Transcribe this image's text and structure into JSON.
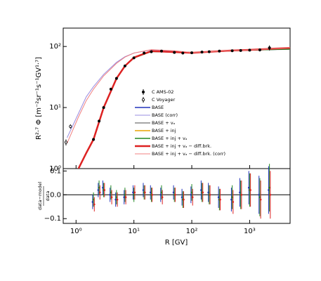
{
  "chart_data": {
    "type": "line",
    "ylabel": "R²·⁷ Φ [m⁻²sr⁻¹s⁻¹GV¹·⁷]",
    "xlabel": "R [GV]",
    "log_x": true,
    "log_y": true,
    "xlim": [
      0.6,
      5000
    ],
    "xticks": [
      {
        "value": 1,
        "label": "10⁰"
      },
      {
        "value": 10,
        "label": "10¹"
      },
      {
        "value": 100,
        "label": "10²"
      },
      {
        "value": 1000,
        "label": "10³"
      }
    ],
    "ylim": [
      1,
      200
    ],
    "yticks": [
      {
        "value": 1,
        "label": "10⁰"
      },
      {
        "value": 10,
        "label": "10¹"
      },
      {
        "value": 100,
        "label": "10²"
      }
    ],
    "x": [
      0.7,
      1.1,
      1.5,
      2,
      3,
      5,
      7,
      10,
      20,
      50,
      100,
      200,
      500,
      1000,
      2000,
      5000
    ],
    "series": [
      {
        "name": "BASE",
        "color": "#2233bb",
        "width": 1.5,
        "values": [
          null,
          1.0,
          1.8,
          3,
          10,
          30,
          48,
          65,
          83,
          81,
          79,
          82,
          85,
          87,
          89,
          91
        ]
      },
      {
        "name": "BASE (corr)",
        "color": "#9a8ce0",
        "width": 1,
        "values": [
          3.2,
          8,
          15,
          22,
          35,
          55,
          68,
          78,
          88,
          84,
          80,
          82,
          85,
          87,
          89,
          92
        ]
      },
      {
        "name": "BASE + vₐ",
        "color": "#888888",
        "width": 1.5,
        "values": [
          null,
          1.0,
          1.8,
          3,
          10,
          30,
          48,
          65,
          83,
          81,
          79,
          82,
          85,
          87,
          89,
          90
        ]
      },
      {
        "name": "BASE + inj",
        "color": "#e8a400",
        "width": 1.5,
        "values": [
          null,
          1.0,
          1.8,
          3.1,
          10,
          30,
          48,
          65,
          83,
          81,
          79,
          82,
          85,
          87,
          90,
          93
        ]
      },
      {
        "name": "BASE + inj + vₐ",
        "color": "#228822",
        "width": 1.5,
        "values": [
          null,
          1.0,
          1.8,
          3,
          10,
          30,
          48,
          65,
          83,
          81,
          79,
          82,
          85,
          87,
          89,
          91
        ]
      },
      {
        "name": "BASE + inj + vₐ − diff.brk.",
        "color": "#dd2222",
        "width": 2.5,
        "values": [
          null,
          1.0,
          1.8,
          3,
          10,
          30,
          48,
          66,
          84,
          81,
          79,
          82,
          86,
          88,
          91,
          95
        ]
      },
      {
        "name": "BASE + inj + vₐ − diff.brk. (corr)",
        "color": "#f08080",
        "width": 1,
        "values": [
          2.6,
          7,
          13,
          20,
          33,
          53,
          67,
          78,
          89,
          85,
          80,
          82,
          86,
          88,
          91,
          96
        ]
      }
    ],
    "data_series": [
      {
        "name": "C AMS-02",
        "color": "#000000",
        "filled": true,
        "x": [
          2,
          2.5,
          3,
          4,
          5,
          7,
          10,
          15,
          20,
          30,
          50,
          70,
          100,
          150,
          200,
          300,
          500,
          700,
          1000,
          1500,
          2200
        ],
        "values": [
          3,
          6,
          10,
          20,
          30,
          48,
          65,
          78,
          82,
          84,
          80,
          78,
          79,
          81,
          82,
          84,
          85,
          86,
          87,
          88,
          95
        ],
        "errors": [
          0.1,
          0.2,
          0.3,
          0.5,
          0.7,
          1,
          1.3,
          1.5,
          1.6,
          1.6,
          1.6,
          1.6,
          1.7,
          1.8,
          2,
          2.2,
          2.5,
          3,
          3.5,
          5,
          9
        ]
      },
      {
        "name": "C Voyager",
        "color": "#000000",
        "filled": false,
        "x": [
          0.67,
          0.8
        ],
        "values": [
          2.7,
          4.9
        ],
        "errors": [
          0.3,
          0.4
        ]
      }
    ],
    "residual_panel": {
      "ylabel_num": "data−model",
      "ylabel_den": "data",
      "ylim": [
        -0.12,
        0.11
      ],
      "yticks": [
        {
          "value": -0.1,
          "label": "−0.1"
        },
        {
          "value": 0,
          "label": "0.0"
        },
        0.1
      ],
      "x": [
        2,
        2.5,
        3,
        4,
        5,
        7,
        10,
        15,
        20,
        30,
        50,
        70,
        100,
        150,
        200,
        300,
        500,
        700,
        1000,
        1500,
        2200
      ],
      "errors": [
        0.03,
        0.03,
        0.03,
        0.03,
        0.03,
        0.03,
        0.03,
        0.03,
        0.03,
        0.03,
        0.03,
        0.035,
        0.035,
        0.04,
        0.04,
        0.045,
        0.05,
        0.06,
        0.07,
        0.08,
        0.1
      ],
      "series": [
        {
          "color": "#2233bb",
          "values": [
            -0.03,
            0.02,
            0.03,
            0.0,
            -0.02,
            -0.01,
            0.01,
            0.02,
            0.01,
            0.0,
            0.01,
            -0.01,
            0.0,
            0.02,
            0.01,
            -0.01,
            -0.02,
            0.01,
            0.03,
            0.0,
            0.02
          ]
        },
        {
          "color": "#228822",
          "values": [
            -0.02,
            0.03,
            0.02,
            0.01,
            -0.01,
            0.0,
            0.0,
            0.01,
            0.0,
            0.01,
            0.0,
            -0.02,
            0.01,
            0.01,
            0.0,
            -0.02,
            -0.01,
            0.0,
            0.02,
            -0.01,
            0.03
          ]
        },
        {
          "color": "#dd2222",
          "values": [
            -0.04,
            0.01,
            0.02,
            -0.01,
            -0.02,
            -0.01,
            0.01,
            0.01,
            0.0,
            -0.01,
            0.0,
            -0.02,
            -0.01,
            0.01,
            0.0,
            -0.02,
            -0.03,
            0.0,
            0.02,
            -0.02,
            0.0
          ]
        }
      ]
    }
  }
}
